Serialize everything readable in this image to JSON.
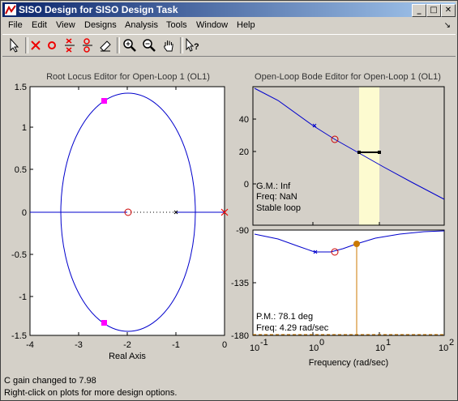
{
  "window": {
    "title": "SISO Design for SISO Design Task"
  },
  "menubar": {
    "items": [
      "File",
      "Edit",
      "View",
      "Designs",
      "Analysis",
      "Tools",
      "Window",
      "Help"
    ]
  },
  "toolbar": {
    "icons": [
      "pointer-icon",
      "add-real-pole-icon",
      "add-real-zero-icon",
      "add-complex-pole-icon",
      "add-complex-zero-icon",
      "eraser-icon",
      "zoom-in-icon",
      "zoom-out-icon",
      "pan-hand-icon",
      "whats-this-icon"
    ]
  },
  "root_locus": {
    "title": "Root Locus Editor for Open-Loop 1 (OL1)",
    "xlabel": "Real Axis",
    "xticks": [
      "-4",
      "-3",
      "-2",
      "-1",
      "0"
    ],
    "yticks": [
      "1.5",
      "1",
      "0.5",
      "0",
      "-0.5",
      "-1",
      "-1.5"
    ]
  },
  "bode": {
    "title": "Open-Loop Bode Editor for Open-Loop 1 (OL1)",
    "mag_yticks": [
      "40",
      "20",
      "0"
    ],
    "phase_yticks": [
      "-90",
      "-135",
      "-180"
    ],
    "xlabel": "Frequency (rad/sec)",
    "xtick_base": "10",
    "xtick_exps": [
      "-1",
      "0",
      "1",
      "2"
    ],
    "mag_info": [
      "G.M.: Inf",
      "Freq: NaN",
      "Stable loop"
    ],
    "phase_info": [
      "P.M.: 78.1 deg",
      "Freq: 4.29 rad/sec"
    ]
  },
  "status": {
    "line1": "C gain changed to 7.98",
    "line2": "Right-click on plots for more design options."
  },
  "colors": {
    "locus": "#0000cc",
    "pole_marker": "#ff00ff",
    "pm_marker": "#cc7a00",
    "highlight": "#fdfbd0"
  }
}
